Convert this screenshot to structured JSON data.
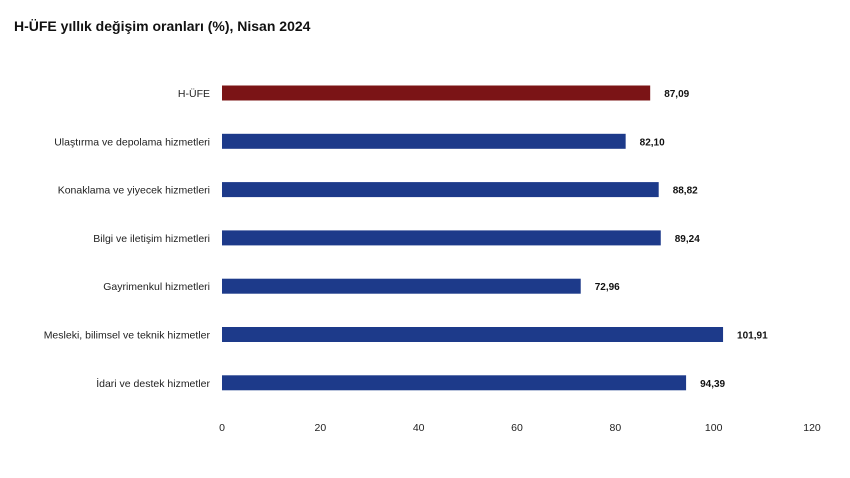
{
  "chart_data": {
    "type": "bar",
    "orientation": "horizontal",
    "title": "H-ÜFE yıllık değişim oranları (%), Nisan 2024",
    "categories": [
      "H-ÜFE",
      "Ulaştırma ve depolama hizmetleri",
      "Konaklama ve yiyecek hizmetleri",
      "Bilgi ve iletişim hizmetleri",
      "Gayrimenkul hizmetleri",
      "Mesleki, bilimsel ve teknik hizmetler",
      "İdari ve destek hizmetler"
    ],
    "values": [
      87.09,
      82.1,
      88.82,
      89.24,
      72.96,
      101.91,
      94.39
    ],
    "value_labels": [
      "87,09",
      "82,10",
      "88,82",
      "89,24",
      "72,96",
      "101,91",
      "94,39"
    ],
    "colors": [
      "#7b1416",
      "#1d3a8a",
      "#1d3a8a",
      "#1d3a8a",
      "#1d3a8a",
      "#1d3a8a",
      "#1d3a8a"
    ],
    "xlim": [
      0,
      120
    ],
    "xticks": [
      "0",
      "20",
      "40",
      "60",
      "80",
      "100",
      "120"
    ],
    "xlabel": "",
    "ylabel": "",
    "grid": false,
    "legend": "none"
  }
}
